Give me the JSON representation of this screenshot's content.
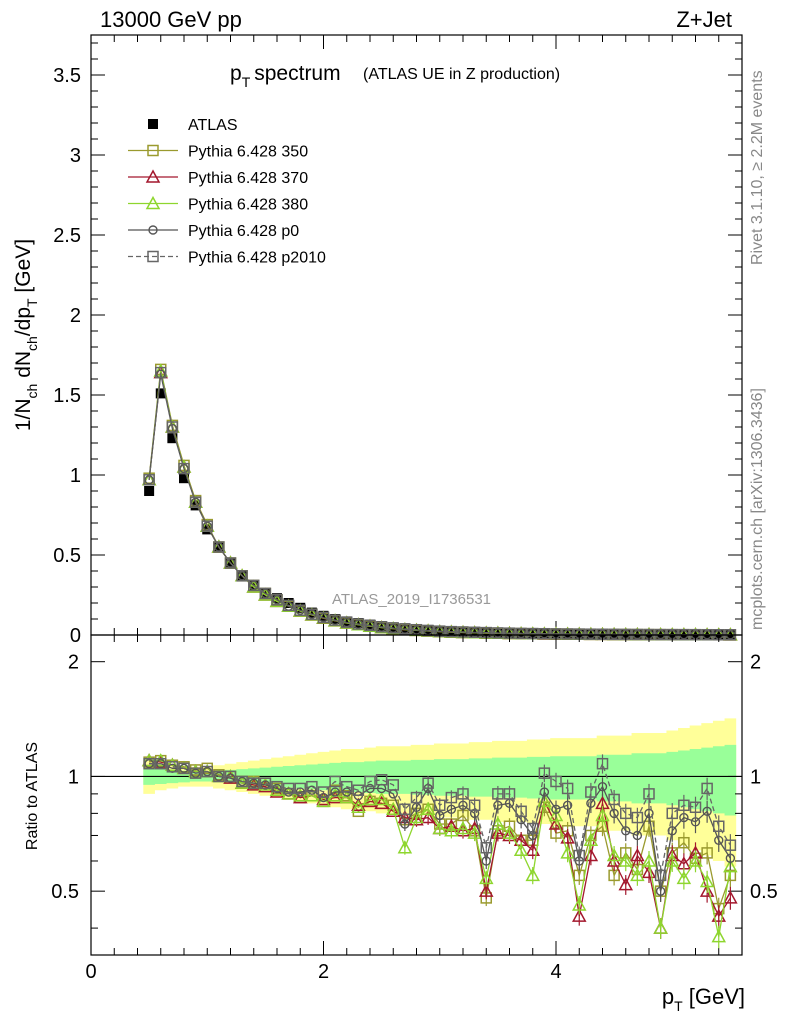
{
  "header": {
    "left": "13000 GeV pp",
    "right": "Z+Jet"
  },
  "side_labels": {
    "rivet": "Rivet 3.1.10, ≥ 2.2M events",
    "mcplots": "mcplots.cern.ch [arXiv:1306.3436]"
  },
  "watermark": "ATLAS_2019_I1736531",
  "chart_data": [
    {
      "type": "line",
      "title": "p_T spectrum (ATLAS UE in Z production)",
      "title_main": "spectrum",
      "title_sub": "(ATLAS UE in Z production)",
      "ylabel": "1/N_ch dN_ch/dp_T [GeV]",
      "xlabel": "p_T [GeV]",
      "xlim": [
        0,
        5.6
      ],
      "ylim": [
        0,
        3.75
      ],
      "yticks": [
        "0",
        "0.5",
        "1",
        "1.5",
        "2",
        "2.5",
        "3",
        "3.5"
      ],
      "legend_position": "top-left",
      "x": [
        0.5,
        0.6,
        0.7,
        0.8,
        0.9,
        1.0,
        1.1,
        1.2,
        1.3,
        1.4,
        1.5,
        1.6,
        1.7,
        1.8,
        1.9,
        2.0,
        2.1,
        2.2,
        2.3,
        2.4,
        2.5,
        2.6,
        2.7,
        2.8,
        2.9,
        3.0,
        3.1,
        3.2,
        3.3,
        3.4,
        3.5,
        3.6,
        3.7,
        3.8,
        3.9,
        4.0,
        4.1,
        4.2,
        4.3,
        4.4,
        4.5,
        4.6,
        4.7,
        4.8,
        4.9,
        5.0,
        5.1,
        5.2,
        5.3,
        5.4,
        5.5
      ],
      "series": [
        {
          "name": "ATLAS",
          "color": "#000000",
          "marker": "filled-square",
          "values": [
            0.9,
            1.51,
            1.23,
            0.98,
            0.81,
            0.66,
            0.55,
            0.45,
            0.37,
            0.31,
            0.26,
            0.23,
            0.2,
            0.17,
            0.14,
            0.12,
            0.1,
            0.085,
            0.075,
            0.065,
            0.056,
            0.048,
            0.042,
            0.037,
            0.032,
            0.028,
            0.025,
            0.022,
            0.019,
            0.017,
            0.015,
            0.013,
            0.012,
            0.011,
            0.0095,
            0.0085,
            0.0075,
            0.0068,
            0.006,
            0.0054,
            0.0048,
            0.0043,
            0.0039,
            0.0035,
            0.0031,
            0.0028,
            0.0025,
            0.0022,
            0.002,
            0.0018,
            0.0016
          ]
        },
        {
          "name": "Pythia 6.428 350",
          "color": "#9a9a2e",
          "marker": "open-square",
          "values": [
            0.98,
            1.66,
            1.31,
            1.06,
            0.84,
            0.69,
            0.55,
            0.45,
            0.37,
            0.31,
            0.26,
            0.22,
            0.18,
            0.15,
            0.13,
            0.105,
            0.09,
            0.076,
            0.065,
            0.056,
            0.047,
            0.04,
            0.034,
            0.03,
            0.026,
            0.022,
            0.019,
            0.017,
            0.015,
            0.013,
            0.011,
            0.01,
            0.009,
            0.008,
            0.007,
            0.006,
            0.0055,
            0.005,
            0.0045,
            0.004,
            0.0036,
            0.0032,
            0.0029,
            0.0026,
            0.0023,
            0.0021,
            0.0019,
            0.0017,
            0.0015,
            0.0014,
            0.0012
          ]
        },
        {
          "name": "Pythia 6.428 370",
          "color": "#a3172d",
          "marker": "open-triangle",
          "values": [
            0.97,
            1.64,
            1.3,
            1.05,
            0.83,
            0.68,
            0.55,
            0.45,
            0.37,
            0.3,
            0.25,
            0.21,
            0.18,
            0.15,
            0.125,
            0.105,
            0.088,
            0.075,
            0.064,
            0.055,
            0.046,
            0.039,
            0.033,
            0.029,
            0.025,
            0.021,
            0.018,
            0.016,
            0.014,
            0.012,
            0.011,
            0.0095,
            0.0085,
            0.0075,
            0.0066,
            0.0058,
            0.0052,
            0.0047,
            0.0042,
            0.0038,
            0.0034,
            0.003,
            0.0027,
            0.0024,
            0.0022,
            0.002,
            0.0018,
            0.0016,
            0.0014,
            0.0013,
            0.0011
          ]
        },
        {
          "name": "Pythia 6.428 380",
          "color": "#8ed62e",
          "marker": "open-triangle",
          "values": [
            0.97,
            1.65,
            1.3,
            1.05,
            0.83,
            0.68,
            0.55,
            0.45,
            0.37,
            0.3,
            0.25,
            0.21,
            0.18,
            0.15,
            0.126,
            0.106,
            0.089,
            0.075,
            0.064,
            0.055,
            0.046,
            0.04,
            0.034,
            0.029,
            0.025,
            0.021,
            0.018,
            0.016,
            0.014,
            0.012,
            0.011,
            0.0095,
            0.0085,
            0.0076,
            0.0067,
            0.0059,
            0.0052,
            0.0047,
            0.0042,
            0.0038,
            0.0034,
            0.003,
            0.0027,
            0.0024,
            0.0022,
            0.002,
            0.0018,
            0.0016,
            0.0014,
            0.0013,
            0.0011
          ]
        },
        {
          "name": "Pythia 6.428 p0",
          "color": "#555555",
          "marker": "open-circle",
          "values": [
            0.97,
            1.63,
            1.29,
            1.04,
            0.83,
            0.68,
            0.55,
            0.45,
            0.37,
            0.31,
            0.26,
            0.22,
            0.18,
            0.155,
            0.13,
            0.108,
            0.091,
            0.078,
            0.067,
            0.058,
            0.049,
            0.042,
            0.036,
            0.031,
            0.027,
            0.023,
            0.02,
            0.018,
            0.016,
            0.014,
            0.012,
            0.011,
            0.0096,
            0.0085,
            0.0075,
            0.0067,
            0.006,
            0.0054,
            0.0048,
            0.0043,
            0.0039,
            0.0035,
            0.0031,
            0.0028,
            0.0025,
            0.0023,
            0.0021,
            0.0019,
            0.0017,
            0.0015,
            0.0014
          ]
        },
        {
          "name": "Pythia 6.428 p2010",
          "color": "#666666",
          "marker": "open-square-dashed",
          "values": [
            0.97,
            1.64,
            1.3,
            1.04,
            0.83,
            0.68,
            0.55,
            0.45,
            0.37,
            0.31,
            0.26,
            0.22,
            0.185,
            0.155,
            0.13,
            0.11,
            0.093,
            0.08,
            0.069,
            0.06,
            0.051,
            0.044,
            0.038,
            0.033,
            0.028,
            0.024,
            0.021,
            0.019,
            0.017,
            0.015,
            0.013,
            0.0115,
            0.01,
            0.009,
            0.008,
            0.0071,
            0.0063,
            0.0057,
            0.0051,
            0.0046,
            0.0041,
            0.0037,
            0.0033,
            0.003,
            0.0027,
            0.0024,
            0.0022,
            0.002,
            0.0018,
            0.0016,
            0.0015
          ]
        }
      ]
    },
    {
      "type": "line",
      "ylabel": "Ratio to ATLAS",
      "xlabel": "p_T [GeV]",
      "xlim": [
        0,
        5.6
      ],
      "ylim": [
        0.34,
        2.35
      ],
      "yticks": [
        "0.5",
        "1",
        "2"
      ],
      "xticks": [
        "0",
        "2",
        "4"
      ],
      "band_1sigma": [
        0.05,
        0.045,
        0.04,
        0.035,
        0.03,
        0.03,
        0.035,
        0.04,
        0.045,
        0.05,
        0.055,
        0.06,
        0.065,
        0.07,
        0.075,
        0.08,
        0.085,
        0.09,
        0.09,
        0.095,
        0.1,
        0.1,
        0.1,
        0.105,
        0.105,
        0.11,
        0.11,
        0.11,
        0.115,
        0.115,
        0.12,
        0.12,
        0.12,
        0.125,
        0.125,
        0.13,
        0.13,
        0.13,
        0.13,
        0.14,
        0.14,
        0.14,
        0.15,
        0.15,
        0.15,
        0.16,
        0.17,
        0.18,
        0.19,
        0.2,
        0.21
      ],
      "band_2sigma": [
        0.1,
        0.08,
        0.07,
        0.06,
        0.06,
        0.06,
        0.07,
        0.08,
        0.09,
        0.1,
        0.11,
        0.12,
        0.13,
        0.14,
        0.15,
        0.16,
        0.17,
        0.18,
        0.18,
        0.19,
        0.2,
        0.2,
        0.2,
        0.21,
        0.21,
        0.22,
        0.22,
        0.22,
        0.23,
        0.23,
        0.24,
        0.24,
        0.24,
        0.25,
        0.25,
        0.26,
        0.26,
        0.26,
        0.26,
        0.28,
        0.28,
        0.28,
        0.3,
        0.3,
        0.3,
        0.32,
        0.34,
        0.36,
        0.38,
        0.4,
        0.42
      ],
      "series": [
        {
          "name": "Pythia 6.428 350",
          "color": "#9a9a2e",
          "values": [
            1.09,
            1.1,
            1.07,
            1.06,
            1.04,
            1.05,
            1.01,
            1.0,
            0.97,
            0.97,
            0.96,
            0.93,
            0.9,
            0.88,
            0.89,
            0.86,
            0.92,
            0.89,
            0.81,
            0.86,
            0.85,
            0.84,
            0.77,
            0.8,
            0.82,
            0.75,
            0.75,
            0.79,
            0.72,
            0.48,
            0.72,
            0.74,
            0.68,
            0.68,
            0.83,
            0.71,
            0.72,
            0.55,
            0.7,
            0.74,
            0.55,
            0.63,
            0.57,
            0.74,
            0.5,
            0.63,
            0.67,
            0.61,
            0.63,
            0.45,
            0.55
          ]
        },
        {
          "name": "Pythia 6.428 370",
          "color": "#a3172d",
          "values": [
            1.1,
            1.09,
            1.07,
            1.05,
            1.03,
            1.03,
            1.0,
            0.99,
            0.96,
            0.95,
            0.94,
            0.91,
            0.9,
            0.88,
            0.89,
            0.87,
            0.88,
            0.88,
            0.84,
            0.86,
            0.85,
            0.81,
            0.78,
            0.77,
            0.78,
            0.73,
            0.74,
            0.72,
            0.73,
            0.5,
            0.71,
            0.7,
            0.68,
            0.64,
            0.86,
            0.75,
            0.69,
            0.43,
            0.62,
            0.85,
            0.6,
            0.52,
            0.62,
            0.56,
            0.4,
            0.62,
            0.59,
            0.63,
            0.5,
            0.43,
            0.48
          ]
        },
        {
          "name": "Pythia 6.428 380",
          "color": "#8ed62e",
          "values": [
            1.1,
            1.1,
            1.07,
            1.05,
            1.03,
            1.03,
            1.0,
            1.0,
            0.96,
            0.96,
            0.95,
            0.92,
            0.9,
            0.89,
            0.89,
            0.86,
            0.89,
            0.88,
            0.83,
            0.87,
            0.87,
            0.82,
            0.65,
            0.78,
            0.82,
            0.73,
            0.72,
            0.73,
            0.71,
            0.54,
            0.75,
            0.71,
            0.64,
            0.55,
            0.86,
            0.79,
            0.63,
            0.46,
            0.68,
            0.79,
            0.62,
            0.6,
            0.55,
            0.6,
            0.4,
            0.6,
            0.54,
            0.6,
            0.53,
            0.38,
            0.58
          ]
        },
        {
          "name": "Pythia 6.428 p0",
          "color": "#555555",
          "values": [
            1.08,
            1.08,
            1.05,
            1.05,
            1.02,
            1.03,
            1.0,
            0.99,
            0.97,
            0.96,
            0.95,
            0.93,
            0.91,
            0.91,
            0.92,
            0.88,
            0.91,
            0.91,
            0.89,
            0.93,
            0.93,
            0.9,
            0.75,
            0.83,
            0.93,
            0.79,
            0.82,
            0.84,
            0.8,
            0.6,
            0.84,
            0.85,
            0.77,
            0.7,
            0.91,
            0.82,
            0.84,
            0.6,
            0.85,
            0.94,
            0.8,
            0.72,
            0.7,
            0.8,
            0.5,
            0.72,
            0.78,
            0.76,
            0.81,
            0.68,
            0.61
          ]
        },
        {
          "name": "Pythia 6.428 p2010",
          "color": "#666666",
          "values": [
            1.08,
            1.08,
            1.06,
            1.05,
            1.02,
            1.03,
            1.0,
            1.0,
            0.97,
            0.96,
            0.96,
            0.94,
            0.93,
            0.93,
            0.94,
            0.91,
            0.97,
            0.94,
            0.92,
            0.97,
            0.98,
            0.95,
            0.82,
            0.88,
            0.96,
            0.84,
            0.88,
            0.9,
            0.84,
            0.65,
            0.9,
            0.9,
            0.81,
            0.73,
            1.02,
            0.97,
            0.93,
            0.62,
            0.91,
            1.08,
            0.87,
            0.8,
            0.78,
            0.9,
            0.55,
            0.8,
            0.84,
            0.83,
            0.93,
            0.74,
            0.66
          ]
        }
      ]
    }
  ]
}
